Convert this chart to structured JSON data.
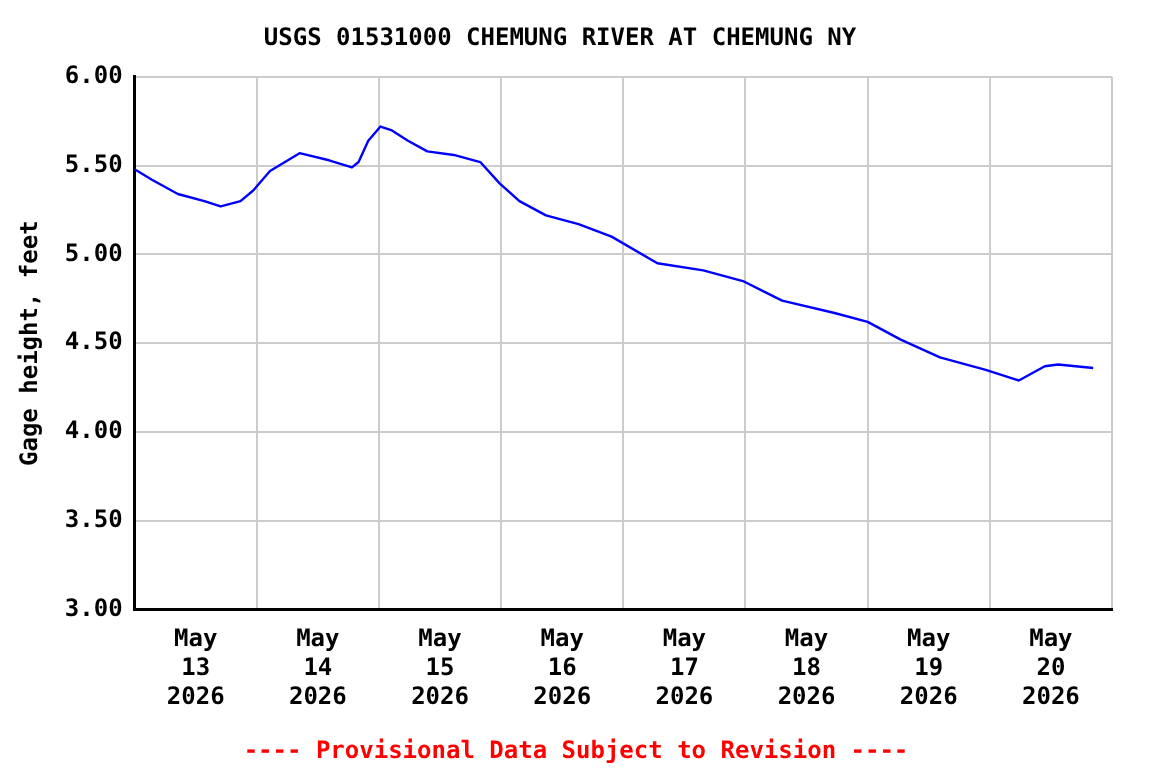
{
  "chart_data": {
    "type": "line",
    "title": "USGS 01531000 CHEMUNG RIVER AT CHEMUNG NY",
    "ylabel": "Gage height, feet",
    "annotations": [
      "---- Provisional Data Subject to Revision ----"
    ],
    "x": [
      "2026-05-13T00:00",
      "2026-05-13T03:24",
      "2026-05-13T08:30",
      "2026-05-13T13:42",
      "2026-05-13T16:54",
      "2026-05-13T20:48",
      "2026-05-13T23:18",
      "2026-05-14T02:36",
      "2026-05-14T08:24",
      "2026-05-14T14:12",
      "2026-05-14T18:42",
      "2026-05-14T20:00",
      "2026-05-14T21:54",
      "2026-05-15T00:18",
      "2026-05-15T02:24",
      "2026-05-15T05:42",
      "2026-05-15T09:30",
      "2026-05-15T14:42",
      "2026-05-15T19:54",
      "2026-05-15T23:42",
      "2026-05-16T03:36",
      "2026-05-16T08:48",
      "2026-05-16T15:12",
      "2026-05-16T21:42",
      "2026-05-17T06:42",
      "2026-05-17T15:42",
      "2026-05-17T23:30",
      "2026-05-18T07:12",
      "2026-05-18T17:30",
      "2026-05-19T00:00",
      "2026-05-19T06:30",
      "2026-05-19T14:12",
      "2026-05-19T23:12",
      "2026-05-20T05:42",
      "2026-05-20T10:48",
      "2026-05-20T13:24",
      "2026-05-20T20:18"
    ],
    "series": [
      {
        "color": "#0000ff",
        "values": [
          5.48,
          5.42,
          5.34,
          5.3,
          5.27,
          5.3,
          5.36,
          5.47,
          5.57,
          5.53,
          5.49,
          5.52,
          5.64,
          5.72,
          5.7,
          5.64,
          5.58,
          5.56,
          5.52,
          5.4,
          5.3,
          5.22,
          5.17,
          5.1,
          4.95,
          4.91,
          4.85,
          4.74,
          4.67,
          4.62,
          4.52,
          4.42,
          4.35,
          4.29,
          4.37,
          4.38,
          4.36
        ]
      }
    ],
    "xlim": [
      "2026-05-13T00:00",
      "2026-05-21T00:00"
    ],
    "xticks": [
      {
        "value": "2026-05-13T00:00",
        "label": null
      },
      {
        "value": "2026-05-13T12:00",
        "label": "May 13 2026"
      },
      {
        "value": "2026-05-14T00:00",
        "label": null
      },
      {
        "value": "2026-05-14T12:00",
        "label": "May 14 2026"
      },
      {
        "value": "2026-05-15T00:00",
        "label": null
      },
      {
        "value": "2026-05-15T12:00",
        "label": "May 15 2026"
      },
      {
        "value": "2026-05-16T00:00",
        "label": null
      },
      {
        "value": "2026-05-16T12:00",
        "label": "May 16 2026"
      },
      {
        "value": "2026-05-17T00:00",
        "label": null
      },
      {
        "value": "2026-05-17T12:00",
        "label": "May 17 2026"
      },
      {
        "value": "2026-05-18T00:00",
        "label": null
      },
      {
        "value": "2026-05-18T12:00",
        "label": "May 18 2026"
      },
      {
        "value": "2026-05-19T00:00",
        "label": null
      },
      {
        "value": "2026-05-19T12:00",
        "label": "May 19 2026"
      },
      {
        "value": "2026-05-20T00:00",
        "label": null
      },
      {
        "value": "2026-05-20T12:00",
        "label": "May 20 2026"
      },
      {
        "value": "2026-05-21T00:00",
        "label": null
      }
    ],
    "ylim": [
      3,
      6
    ],
    "yticks": [
      {
        "value": 3,
        "label": "3.00"
      },
      {
        "value": 3.5,
        "label": "3.50"
      },
      {
        "value": 4,
        "label": "4.00"
      },
      {
        "value": 4.5,
        "label": "4.50"
      },
      {
        "value": 5,
        "label": "5.00"
      },
      {
        "value": 5.5,
        "label": "5.50"
      },
      {
        "value": 6,
        "label": "6.00"
      }
    ],
    "grid": true,
    "legend": false,
    "marker": "none",
    "line_style": "solid"
  }
}
